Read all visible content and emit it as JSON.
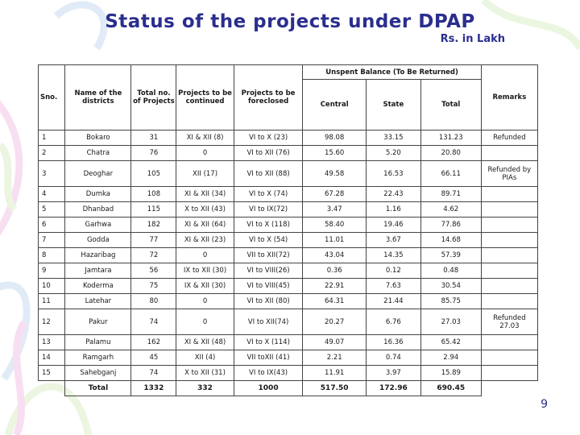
{
  "title": "Status of the projects under DPAP",
  "unit": "Rs. in Lakh",
  "page_number": "9",
  "headers": {
    "sno": "Sno.",
    "district": "Name of the districts",
    "total_projects": "Total no. of Projects",
    "continued": "Projects to be continued",
    "foreclosed": "Projects to be foreclosed",
    "unspent": "Unspent Balance (To Be Returned)",
    "central": "Central",
    "state": "State",
    "total": "Total",
    "remarks": "Remarks"
  },
  "rows": [
    {
      "sno": "1",
      "district": "Bokaro",
      "total": "31",
      "continued": "XI & XII (8)",
      "foreclosed": "VI to X (23)",
      "central": "98.08",
      "state": "33.15",
      "sum": "131.23",
      "remarks": "Refunded"
    },
    {
      "sno": "2",
      "district": "Chatra",
      "total": "76",
      "continued": "0",
      "foreclosed": "VI to XII (76)",
      "central": "15.60",
      "state": "5.20",
      "sum": "20.80",
      "remarks": ""
    },
    {
      "sno": "3",
      "district": "Deoghar",
      "total": "105",
      "continued": "XII (17)",
      "foreclosed": "VI to XII (88)",
      "central": "49.58",
      "state": "16.53",
      "sum": "66.11",
      "remarks": "Refunded by PIAs"
    },
    {
      "sno": "4",
      "district": "Dumka",
      "total": "108",
      "continued": "XI & XII (34)",
      "foreclosed": "VI to X (74)",
      "central": "67.28",
      "state": "22.43",
      "sum": "89.71",
      "remarks": ""
    },
    {
      "sno": "5",
      "district": "Dhanbad",
      "total": "115",
      "continued": "X to XII (43)",
      "foreclosed": "VI to IX(72)",
      "central": "3.47",
      "state": "1.16",
      "sum": "4.62",
      "remarks": ""
    },
    {
      "sno": "6",
      "district": "Garhwa",
      "total": "182",
      "continued": "XI & XII (64)",
      "foreclosed": "VI to X (118)",
      "central": "58.40",
      "state": "19.46",
      "sum": "77.86",
      "remarks": ""
    },
    {
      "sno": "7",
      "district": "Godda",
      "total": "77",
      "continued": "XI & XII (23)",
      "foreclosed": "VI to X (54)",
      "central": "11.01",
      "state": "3.67",
      "sum": "14.68",
      "remarks": ""
    },
    {
      "sno": "8",
      "district": "Hazaribag",
      "total": "72",
      "continued": "0",
      "foreclosed": "VII to XII(72)",
      "central": "43.04",
      "state": "14.35",
      "sum": "57.39",
      "remarks": ""
    },
    {
      "sno": "9",
      "district": "Jamtara",
      "total": "56",
      "continued": "IX to XII (30)",
      "foreclosed": "VI to VIII(26)",
      "central": "0.36",
      "state": "0.12",
      "sum": "0.48",
      "remarks": ""
    },
    {
      "sno": "10",
      "district": "Koderma",
      "total": "75",
      "continued": "IX & XII (30)",
      "foreclosed": "VI to VIII(45)",
      "central": "22.91",
      "state": "7.63",
      "sum": "30.54",
      "remarks": ""
    },
    {
      "sno": "11",
      "district": "Latehar",
      "total": "80",
      "continued": "0",
      "foreclosed": "VI to XII (80)",
      "central": "64.31",
      "state": "21.44",
      "sum": "85.75",
      "remarks": ""
    },
    {
      "sno": "12",
      "district": "Pakur",
      "total": "74",
      "continued": "0",
      "foreclosed": "VI to XII(74)",
      "central": "20.27",
      "state": "6.76",
      "sum": "27.03",
      "remarks": "Refunded 27.03"
    },
    {
      "sno": "13",
      "district": "Palamu",
      "total": "162",
      "continued": "XI & XII (48)",
      "foreclosed": "VI to X (114)",
      "central": "49.07",
      "state": "16.36",
      "sum": "65.42",
      "remarks": ""
    },
    {
      "sno": "14",
      "district": "Ramgarh",
      "total": "45",
      "continued": "XII (4)",
      "foreclosed": "VII toXII (41)",
      "central": "2.21",
      "state": "0.74",
      "sum": "2.94",
      "remarks": ""
    },
    {
      "sno": "15",
      "district": "Sahebganj",
      "total": "74",
      "continued": "X to XII (31)",
      "foreclosed": "VI to IX(43)",
      "central": "11.91",
      "state": "3.97",
      "sum": "15.89",
      "remarks": ""
    }
  ],
  "totals": {
    "label": "Total",
    "total": "1332",
    "continued": "332",
    "foreclosed": "1000",
    "central": "517.50",
    "state": "172.96",
    "sum": "690.45"
  },
  "colors": {
    "title": "#2a2e8e",
    "deco_pink": "#f2c6e6",
    "deco_blue": "#c9dcf2",
    "deco_green": "#dbeec8"
  }
}
